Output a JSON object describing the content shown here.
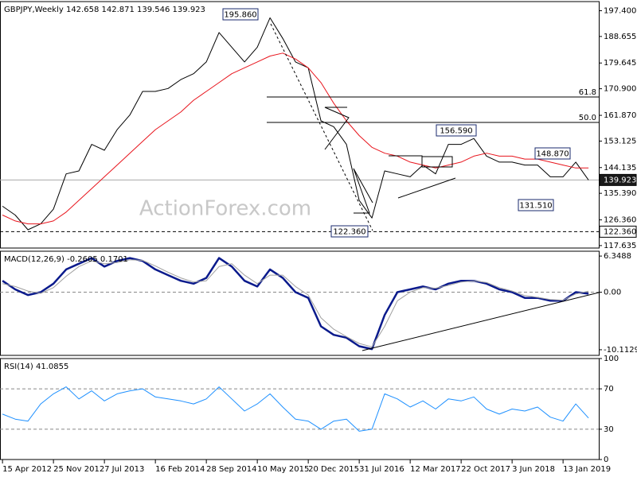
{
  "chart_data": {
    "type": "line",
    "x": [
      "2012-04-15",
      "2012-06-10",
      "2012-08-05",
      "2012-09-30",
      "2012-11-25",
      "2013-01-20",
      "2013-03-17",
      "2013-05-12",
      "2013-07-07",
      "2013-09-01",
      "2013-10-27",
      "2013-12-22",
      "2014-02-16",
      "2014-04-13",
      "2014-06-08",
      "2014-08-03",
      "2014-09-28",
      "2014-11-23",
      "2015-01-18",
      "2015-03-15",
      "2015-05-10",
      "2015-07-05",
      "2015-08-30",
      "2015-10-25",
      "2015-12-20",
      "2016-02-14",
      "2016-04-10",
      "2016-06-05",
      "2016-07-31",
      "2016-09-25",
      "2016-11-20",
      "2017-01-15",
      "2017-03-12",
      "2017-05-07",
      "2017-07-02",
      "2017-08-27",
      "2017-10-22",
      "2017-12-17",
      "2018-02-11",
      "2018-04-08",
      "2018-06-03",
      "2018-07-29",
      "2018-09-23",
      "2018-11-18",
      "2019-01-13",
      "2019-03-10",
      "2019-05-05"
    ],
    "xlim": [
      "2012-04-04",
      "2019-06-19"
    ],
    "xticks": [
      {
        "value": "2012-04-15",
        "label": "15 Apr 2012"
      },
      {
        "value": "2012-11-25",
        "label": "25 Nov 2012"
      },
      {
        "value": "2013-07-07",
        "label": "7 Jul 2013"
      },
      {
        "value": "2014-02-16",
        "label": "16 Feb 2014"
      },
      {
        "value": "2014-09-28",
        "label": "28 Sep 2014"
      },
      {
        "value": "2015-05-10",
        "label": "10 May 2015"
      },
      {
        "value": "2015-12-20",
        "label": "20 Dec 2015"
      },
      {
        "value": "2016-07-31",
        "label": "31 Jul 2016"
      },
      {
        "value": "2017-03-12",
        "label": "12 Mar 2017"
      },
      {
        "value": "2017-10-22",
        "label": "22 Oct 2017"
      },
      {
        "value": "2018-06-03",
        "label": "3 Jun 2018"
      },
      {
        "value": "2019-01-13",
        "label": "13 Jan 2019"
      }
    ],
    "watermark": "ActionForex.com",
    "annotations": [
      "195.860",
      "156.590",
      "148.870",
      "131.510",
      "122.360",
      "61.8",
      "50.0"
    ],
    "panels": [
      {
        "title": "GBPJPY,Weekly 142.658 142.871 139.546 139.923",
        "ylim": [
          116.8,
          200.5
        ],
        "yticks": [
          {
            "value": 197.4,
            "label": "197.400"
          },
          188.655,
          179.645,
          {
            "value": 170.9,
            "label": "170.900"
          },
          {
            "value": 161.87,
            "label": "161.870"
          },
          153.125,
          144.135,
          {
            "value": 135.39,
            "label": "135.390"
          },
          {
            "value": 126.36,
            "label": "126.360"
          },
          117.635
        ],
        "refs": [
          {
            "value": 122.36,
            "label": "122.360",
            "style": "dashed"
          },
          {
            "value": 139.923,
            "label": "139.923",
            "style": "solid"
          }
        ],
        "series": [
          {
            "name": "GBPJPY",
            "color": "#000000",
            "width": 1,
            "values": [
              131,
              128,
              123,
              125,
              130,
              142,
              143,
              152,
              150,
              157,
              162,
              170,
              170,
              171,
              174,
              176,
              180,
              190,
              185,
              180,
              185,
              195,
              188,
              180,
              178,
              160,
              158,
              152,
              133,
              127,
              143,
              142,
              141,
              145,
              142,
              152,
              152,
              154,
              148,
              146,
              146,
              145,
              145,
              141,
              141,
              146,
              139.923
            ]
          },
          {
            "name": "MA",
            "color": "#e8141c",
            "width": 1,
            "values": [
              128,
              126,
              125,
              125,
              126,
              129,
              133,
              137,
              141,
              145,
              149,
              153,
              157,
              160,
              163,
              167,
              170,
              173,
              176,
              178,
              180,
              182,
              183,
              181,
              178,
              173,
              166,
              160,
              155,
              151,
              149,
              148,
              146,
              145,
              144,
              145,
              146,
              148,
              149,
              148,
              148,
              147,
              147,
              146,
              145,
              144,
              144
            ]
          }
        ]
      },
      {
        "title": "MACD(12,26,9) -0.2605 0.1701",
        "ylim": [
          -11.1,
          7.2
        ],
        "yticks": [
          6.3488,
          {
            "value": 0,
            "label": "0.00"
          },
          -10.1129
        ],
        "levels": [
          0
        ],
        "series": [
          {
            "name": "MACD",
            "color": "#0a1a8c",
            "width": 2.5,
            "values": [
              2.0,
              0.5,
              -0.5,
              0.0,
              1.5,
              4.0,
              5.0,
              6.0,
              4.5,
              5.5,
              6.0,
              5.5,
              4.0,
              3.0,
              2.0,
              1.5,
              2.5,
              6.0,
              4.5,
              2.0,
              1.0,
              4.0,
              2.5,
              0.0,
              -1.0,
              -6.0,
              -7.5,
              -8.0,
              -9.5,
              -10.0,
              -4.0,
              0.0,
              0.5,
              1.0,
              0.5,
              1.5,
              2.0,
              2.0,
              1.5,
              0.5,
              0.0,
              -1.0,
              -1.0,
              -1.5,
              -1.5,
              0.0,
              -0.2605
            ]
          },
          {
            "name": "Signal",
            "color": "#a0a0a0",
            "width": 1,
            "values": [
              1.5,
              1.0,
              0.2,
              -0.2,
              0.8,
              2.8,
              4.5,
              5.5,
              5.0,
              5.2,
              5.7,
              5.6,
              4.6,
              3.5,
              2.5,
              1.8,
              2.0,
              4.5,
              5.0,
              3.0,
              1.5,
              3.0,
              3.0,
              1.0,
              -0.5,
              -4.5,
              -6.5,
              -7.8,
              -9.0,
              -9.6,
              -6.0,
              -1.5,
              0.0,
              0.8,
              0.7,
              1.2,
              1.8,
              2.0,
              1.7,
              0.8,
              0.2,
              -0.6,
              -0.9,
              -1.3,
              -1.4,
              -0.3,
              0.1701
            ]
          }
        ]
      },
      {
        "title": "RSI(14) 41.0855",
        "ylim": [
          0,
          100
        ],
        "yticks": [
          100,
          70,
          30,
          0
        ],
        "levels": [
          70,
          30
        ],
        "series": [
          {
            "name": "RSI",
            "color": "#1e90ff",
            "width": 1,
            "values": [
              45,
              40,
              38,
              55,
              65,
              72,
              60,
              68,
              58,
              65,
              68,
              70,
              62,
              60,
              58,
              55,
              60,
              72,
              60,
              48,
              55,
              65,
              52,
              40,
              38,
              30,
              38,
              40,
              28,
              30,
              65,
              60,
              52,
              58,
              50,
              60,
              58,
              62,
              50,
              45,
              50,
              48,
              52,
              42,
              38,
              55,
              41.0855
            ]
          }
        ]
      }
    ]
  }
}
